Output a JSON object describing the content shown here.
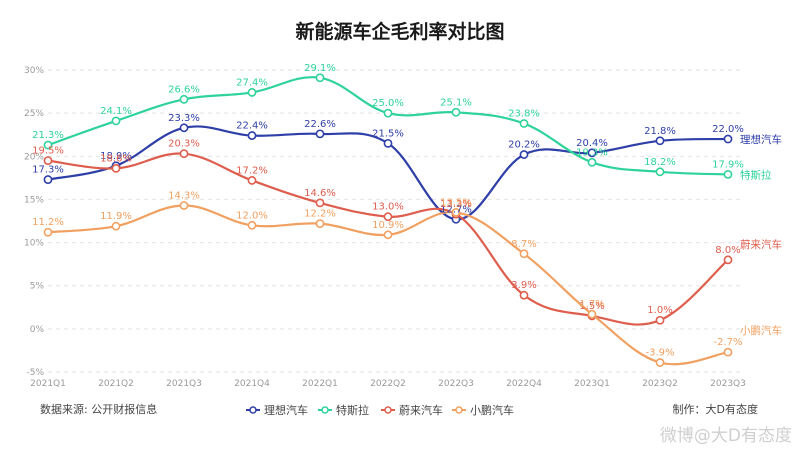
{
  "chart_data": {
    "type": "line",
    "title": "新能源车企毛利率对比图",
    "categories": [
      "2021Q1",
      "2021Q2",
      "2021Q3",
      "2021Q4",
      "2022Q1",
      "2022Q2",
      "2022Q3",
      "2022Q4",
      "2023Q1",
      "2023Q2",
      "2023Q3"
    ],
    "ylim": [
      -5,
      30
    ],
    "yticks": [
      30,
      25,
      20,
      15,
      10,
      5,
      0,
      -5
    ],
    "ytick_labels": [
      "30%",
      "25%",
      "20%",
      "15%",
      "10%",
      "5%",
      "0%",
      "-5%"
    ],
    "grid": true,
    "legend_position": "bottom-center",
    "series": [
      {
        "name": "理想汽车",
        "color": "#2f3fa8",
        "values": [
          17.3,
          18.9,
          23.3,
          22.4,
          22.6,
          21.5,
          12.7,
          20.2,
          20.4,
          21.8,
          22.0
        ],
        "labels": [
          "17.3%",
          "18.9%",
          "23.3%",
          "22.4%",
          "22.6%",
          "21.5%",
          "12.7%",
          "20.2%",
          "20.4%",
          "21.8%",
          "22.0%"
        ]
      },
      {
        "name": "特斯拉",
        "color": "#2fd39a",
        "values": [
          21.3,
          24.1,
          26.6,
          27.4,
          29.1,
          25.0,
          25.1,
          23.8,
          19.3,
          18.2,
          17.9
        ],
        "labels": [
          "21.3%",
          "24.1%",
          "26.6%",
          "27.4%",
          "29.1%",
          "25.0%",
          "25.1%",
          "23.8%",
          "19.3%",
          "18.2%",
          "17.9%"
        ]
      },
      {
        "name": "蔚来汽车",
        "color": "#de5e4e",
        "values": [
          19.5,
          18.6,
          20.3,
          17.2,
          14.6,
          13.0,
          13.3,
          3.9,
          1.5,
          1.0,
          8.0
        ],
        "labels": [
          "19.5%",
          "18.6%",
          "20.3%",
          "17.2%",
          "14.6%",
          "13.0%",
          "13.3%",
          "3.9%",
          "1.5%",
          "1.0%",
          "8.0%"
        ]
      },
      {
        "name": "小鹏汽车",
        "color": "#f0a060",
        "values": [
          11.2,
          11.9,
          14.3,
          12.0,
          12.2,
          10.9,
          13.5,
          8.7,
          1.7,
          -3.9,
          -2.7
        ],
        "labels": [
          "11.2%",
          "11.9%",
          "14.3%",
          "12.0%",
          "12.2%",
          "10.9%",
          "13.5%",
          "8.7%",
          "1.7%",
          "-3.9%",
          "-2.7%"
        ]
      }
    ],
    "end_labels": [
      "理想汽车",
      "特斯拉",
      "蔚来汽车",
      "小鹏汽车"
    ]
  },
  "footer": {
    "source": "数据来源: 公开财报信息",
    "author": "制作：大D有态度"
  },
  "watermark": "微博@大D有态度"
}
